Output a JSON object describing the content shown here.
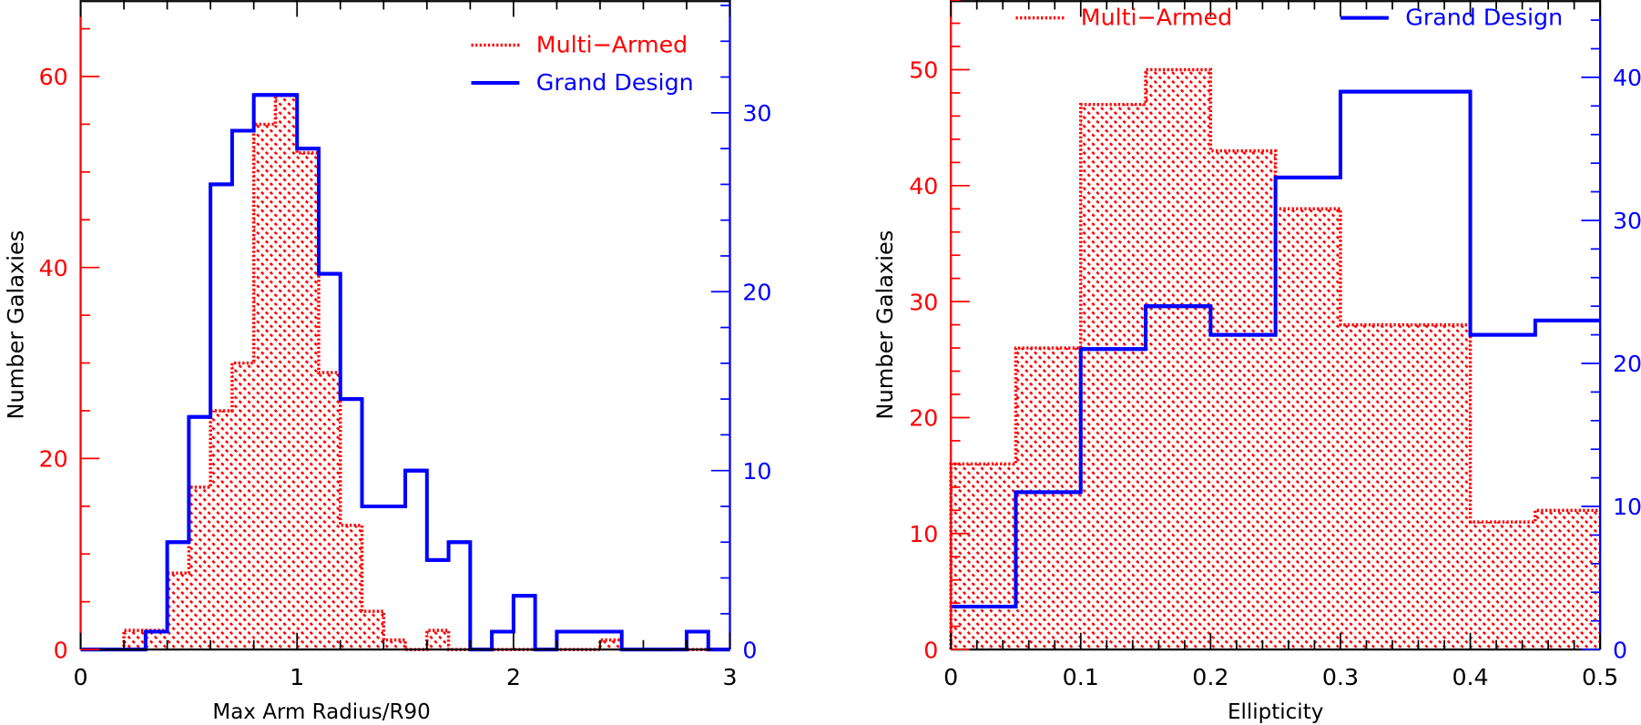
{
  "colors": {
    "multi_armed": "#ff0000",
    "grand_design": "#0000ff",
    "axis": "#000000"
  },
  "chart_data": [
    {
      "type": "histogram",
      "title": "",
      "xlabel": "Max Arm Radius/R90",
      "ylabel": "Number Galaxies",
      "xlim": [
        0,
        3
      ],
      "ylim_left": [
        0,
        68
      ],
      "ylim_right": [
        0,
        36.3
      ],
      "bin_edges_start": 0,
      "bin_width": 0.1,
      "x_ticks": [
        0,
        1,
        2,
        3
      ],
      "x_tick_labels": [
        "0",
        "1",
        "2",
        "3"
      ],
      "x_minor_step": 0.2,
      "y_left_ticks": [
        0,
        20,
        40,
        60
      ],
      "y_left_tick_labels": [
        "0",
        "20",
        "40",
        "60"
      ],
      "y_left_minor_step": 5,
      "y_right_ticks": [
        0,
        10,
        20,
        30
      ],
      "y_right_tick_labels": [
        "0",
        "10",
        "20",
        "30"
      ],
      "y_right_minor_step": 2,
      "legend": {
        "placement": "top-right",
        "entries": [
          "Multi−Armed",
          "Grand Design"
        ]
      },
      "series": [
        {
          "name": "Multi−Armed",
          "axis": "left",
          "style": "dotted-hatched",
          "values": [
            0,
            0,
            2,
            2,
            8,
            17,
            25,
            30,
            55,
            58,
            52,
            29,
            13,
            4,
            1,
            0,
            2,
            0,
            0,
            0,
            0,
            0,
            0,
            0,
            1,
            0,
            0,
            0,
            0,
            0
          ]
        },
        {
          "name": "Grand Design",
          "axis": "right",
          "style": "solid",
          "values": [
            0,
            0,
            0,
            1,
            6,
            13,
            26,
            29,
            31,
            31,
            28,
            21,
            14,
            8,
            8,
            10,
            5,
            6,
            0,
            1,
            3,
            0,
            1,
            1,
            1,
            0,
            0,
            0,
            1,
            0
          ]
        }
      ]
    },
    {
      "type": "histogram",
      "title": "",
      "xlabel": "Ellipticity",
      "ylabel": "Number Galaxies",
      "xlim": [
        0,
        0.5
      ],
      "ylim_left": [
        0,
        56
      ],
      "ylim_right": [
        0,
        45.4
      ],
      "bin_edges_start": 0,
      "bin_width": 0.05,
      "x_ticks": [
        0,
        0.1,
        0.2,
        0.3,
        0.4,
        0.5
      ],
      "x_tick_labels": [
        "0",
        "0.1",
        "0.2",
        "0.3",
        "0.4",
        "0.5"
      ],
      "x_minor_step": 0.02,
      "y_left_ticks": [
        0,
        10,
        20,
        30,
        40,
        50
      ],
      "y_left_tick_labels": [
        "0",
        "10",
        "20",
        "30",
        "40",
        "50"
      ],
      "y_left_minor_step": 2,
      "y_right_ticks": [
        0,
        10,
        20,
        30,
        40
      ],
      "y_right_tick_labels": [
        "0",
        "10",
        "20",
        "30",
        "40"
      ],
      "y_right_minor_step": 2,
      "legend": {
        "placement": "top",
        "entries": [
          "Multi−Armed",
          "Grand Design"
        ]
      },
      "series": [
        {
          "name": "Multi−Armed",
          "axis": "left",
          "style": "dotted-hatched",
          "values": [
            16,
            26,
            47,
            50,
            43,
            38,
            28,
            28,
            11,
            12
          ]
        },
        {
          "name": "Grand Design",
          "axis": "right",
          "style": "solid",
          "values": [
            3,
            11,
            21,
            24,
            22,
            33,
            39,
            39,
            22,
            23
          ]
        }
      ]
    }
  ]
}
